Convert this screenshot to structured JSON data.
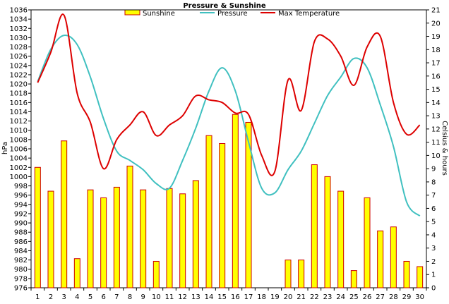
{
  "chart_data": {
    "type": "bar+line",
    "title": "Pressure & Sunshine",
    "categories": [
      "1",
      "2",
      "3",
      "4",
      "5",
      "6",
      "7",
      "8",
      "9",
      "10",
      "11",
      "12",
      "13",
      "14",
      "15",
      "16",
      "17",
      "18",
      "19",
      "20",
      "21",
      "22",
      "23",
      "24",
      "25",
      "26",
      "27",
      "28",
      "29",
      "30"
    ],
    "left_axis": {
      "label": "hPa",
      "min": 976,
      "max": 1036,
      "step": 2
    },
    "right_axis": {
      "label": "Celsius & hours",
      "min": 0,
      "max": 21,
      "step": 1
    },
    "legend": [
      "Sunshine",
      "Pressure",
      "Max Temperature"
    ],
    "legend_position": "top",
    "series": [
      {
        "name": "Sunshine",
        "type": "bar",
        "axis": "right",
        "color": "#ffff00",
        "stroke": "#cc0000",
        "values": [
          9.1,
          7.3,
          11.1,
          2.2,
          7.4,
          6.8,
          7.6,
          9.2,
          7.4,
          2.0,
          7.5,
          7.1,
          8.1,
          11.5,
          10.9,
          13.1,
          12.5,
          0,
          0,
          2.1,
          2.1,
          9.3,
          8.4,
          7.3,
          1.3,
          6.8,
          4.3,
          4.6,
          2.0,
          1.6
        ]
      },
      {
        "name": "Pressure",
        "type": "line",
        "axis": "left",
        "color": "#40c0c0",
        "values": [
          1020.5,
          1027.5,
          1030.5,
          1028.5,
          1021.5,
          1012.5,
          1005.5,
          1003.5,
          1001.5,
          998.5,
          997.5,
          1003.5,
          1010.5,
          1018.5,
          1023.5,
          1018.5,
          1007.5,
          997.5,
          996.5,
          1001.5,
          1005.5,
          1011.5,
          1017.5,
          1021.5,
          1025.5,
          1023.5,
          1015.5,
          1006.5,
          994.5,
          991.5
        ]
      },
      {
        "name": "Max Temperature",
        "type": "line",
        "axis": "right",
        "color": "#dd0000",
        "values": [
          15.5,
          17.8,
          20.6,
          14.7,
          12.5,
          9.0,
          11.2,
          12.3,
          13.3,
          11.5,
          12.3,
          13.0,
          14.5,
          14.2,
          14.0,
          13.2,
          13.1,
          10.0,
          8.8,
          15.7,
          13.4,
          18.6,
          18.8,
          17.5,
          15.3,
          18.2,
          19.0,
          14.0,
          11.6,
          12.3
        ]
      }
    ]
  }
}
